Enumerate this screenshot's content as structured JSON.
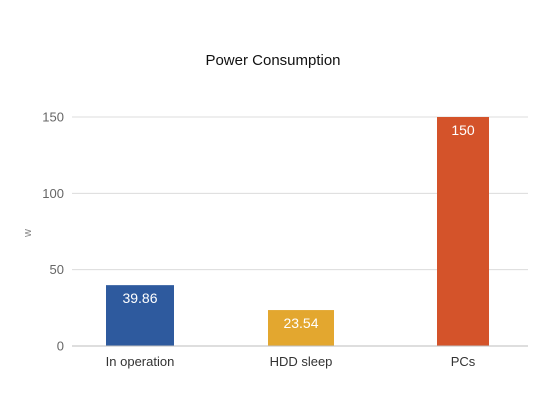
{
  "chart_data": {
    "type": "bar",
    "title": "Power Consumption",
    "xlabel": "",
    "ylabel": "w",
    "categories": [
      "In operation",
      "HDD sleep",
      "PCs"
    ],
    "values": [
      39.86,
      23.54,
      150
    ],
    "data_labels": [
      "39.86",
      "23.54",
      "150"
    ],
    "colors": [
      "#2e5a9e",
      "#e3a72f",
      "#d4532a"
    ],
    "ylim": [
      0,
      150
    ],
    "yticks": [
      0,
      50,
      100,
      150
    ],
    "ytick_labels": [
      "0",
      "50",
      "100",
      "150"
    ],
    "grid": true,
    "legend": "none"
  }
}
